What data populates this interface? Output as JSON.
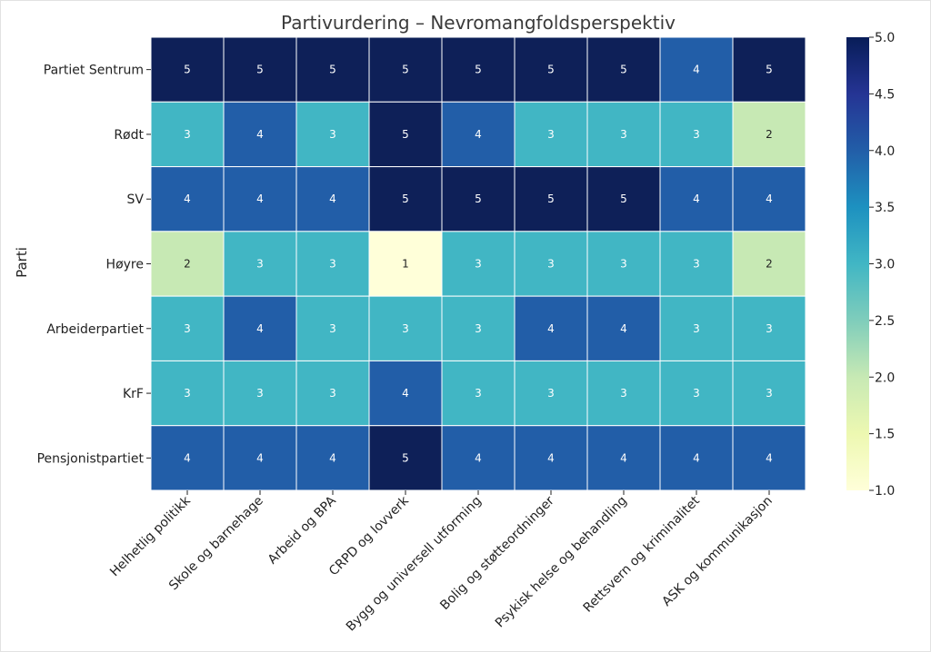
{
  "chart_data": {
    "type": "heatmap",
    "title": "Partivurdering – Nevromangfoldsperspektiv",
    "ylabel": "Parti",
    "xlabel": "",
    "rows": [
      "Partiet Sentrum",
      "Rødt",
      "SV",
      "Høyre",
      "Arbeiderpartiet",
      "KrF",
      "Pensjonistpartiet"
    ],
    "columns": [
      "Helhetlig politikk",
      "Skole og barnehage",
      "Arbeid og BPA",
      "CRPD og lovverk",
      "Bygg og universell utforming",
      "Bolig og støtteordninger",
      "Psykisk helse og behandling",
      "Rettsvern og kriminalitet",
      "ASK og kommunikasjon"
    ],
    "values": [
      [
        5,
        5,
        5,
        5,
        5,
        5,
        5,
        4,
        5
      ],
      [
        3,
        4,
        3,
        5,
        4,
        3,
        3,
        3,
        2
      ],
      [
        4,
        4,
        4,
        5,
        5,
        5,
        5,
        4,
        4
      ],
      [
        2,
        3,
        3,
        1,
        3,
        3,
        3,
        3,
        2
      ],
      [
        3,
        4,
        3,
        3,
        3,
        4,
        4,
        3,
        3
      ],
      [
        3,
        3,
        3,
        4,
        3,
        3,
        3,
        3,
        3
      ],
      [
        4,
        4,
        4,
        5,
        4,
        4,
        4,
        4,
        4
      ]
    ],
    "colorbar": {
      "range": [
        1.0,
        5.0
      ],
      "ticks": [
        "1.0",
        "1.5",
        "2.0",
        "2.5",
        "3.0",
        "3.5",
        "4.0",
        "4.5",
        "5.0"
      ],
      "colormap": "YlGnBu"
    },
    "colors": {
      "1": "#ffffd9",
      "2": "#c7e9b4",
      "3": "#41b6c4",
      "4": "#225ea8",
      "5": "#0e2058",
      "label_dark": "#222222",
      "label_light": "#ffffff",
      "grid": "#ffffff"
    },
    "grid": true,
    "legend": "right"
  }
}
